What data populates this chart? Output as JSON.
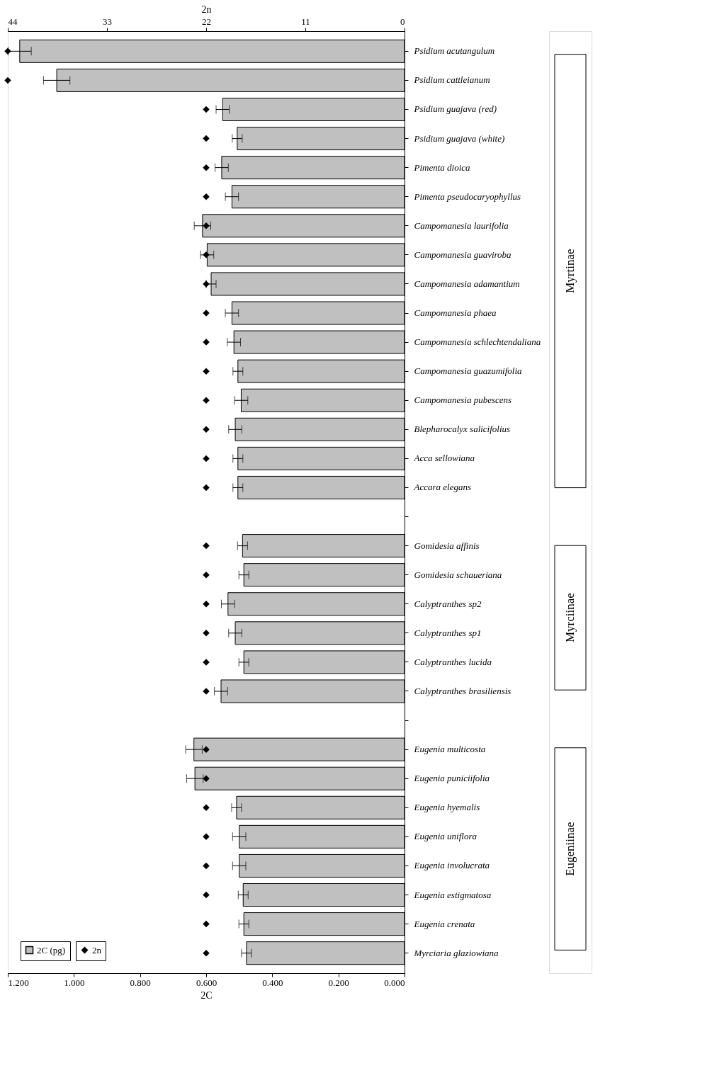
{
  "chart_data": {
    "type": "bar",
    "orientation": "horizontal",
    "xlabel": "2C",
    "x2label": "2n",
    "categories": [
      "Psidium acutangulum",
      "Psidium cattleianum",
      "Psidium guajava (red)",
      "Psidium guajava (white)",
      "Pimenta dioica",
      "Pimenta pseudocaryophyllus",
      "Campomanesia laurifolia",
      "Campomanesia guaviroba",
      "Campomanesia adamantium",
      "Campomanesia phaea",
      "Campomanesia schlechtendaliana",
      "Campomanesia guazumifolia",
      "Campomanesia pubescens",
      "Blepharocalyx salicifolius",
      "Acca sellowiana",
      "Accara elegans",
      null,
      "Gomidesia affinis",
      "Gomidesia schaueriana",
      "Calyptranthes sp2",
      "Calyptranthes sp1",
      "Calyptranthes lucida",
      "Calyptranthes brasiliensis",
      null,
      "Eugenia multicosta",
      "Eugenia puniciifolia",
      "Eugenia hyemalis",
      "Eugenia uniflora",
      "Eugenia involucrata",
      "Eugenia estigmatosa",
      "Eugenia crenata",
      "Myrciaria glaziowiana"
    ],
    "series": [
      {
        "name": "2C (pg)",
        "color": "#c0c0c0",
        "values": [
          1.164,
          1.052,
          0.55,
          0.506,
          0.553,
          0.522,
          0.611,
          0.597,
          0.585,
          0.522,
          0.516,
          0.504,
          0.494,
          0.512,
          0.504,
          0.504,
          null,
          0.49,
          0.486,
          0.534,
          0.512,
          0.486,
          0.555,
          null,
          0.637,
          0.634,
          0.508,
          0.5,
          0.5,
          0.488,
          0.486,
          0.478
        ],
        "errors": [
          0.035,
          0.04,
          0.02,
          0.015,
          0.02,
          0.02,
          0.025,
          0.02,
          0.015,
          0.02,
          0.02,
          0.015,
          0.02,
          0.02,
          0.015,
          0.015,
          null,
          0.015,
          0.015,
          0.02,
          0.02,
          0.015,
          0.02,
          null,
          0.025,
          0.025,
          0.015,
          0.02,
          0.02,
          0.015,
          0.015,
          0.015
        ]
      },
      {
        "name": "2n",
        "type": "scatter",
        "axis": "x2",
        "color": "#000000",
        "marker": "diamond",
        "values": [
          44,
          44,
          22,
          22,
          22,
          22,
          22,
          22,
          22,
          22,
          22,
          22,
          22,
          22,
          22,
          22,
          null,
          22,
          22,
          22,
          22,
          22,
          22,
          null,
          22,
          22,
          22,
          22,
          22,
          22,
          22,
          22
        ]
      }
    ],
    "xlim": [
      1.2,
      0
    ],
    "xticks": [
      {
        "value": 1.2,
        "label": "1.200"
      },
      {
        "value": 1.0,
        "label": "1.000"
      },
      {
        "value": 0.8,
        "label": "0.800"
      },
      {
        "value": 0.6,
        "label": "0.600"
      },
      {
        "value": 0.4,
        "label": "0.400"
      },
      {
        "value": 0.2,
        "label": "0.200"
      },
      {
        "value": 0,
        "label": "0.000"
      }
    ],
    "x2lim": [
      44,
      0
    ],
    "x2ticks": [
      44,
      33,
      22,
      11,
      0
    ],
    "grid": false,
    "legend": "bottom left",
    "annotations": [
      "Myrtinae",
      "Myrciinae",
      "Eugeniinae"
    ]
  }
}
